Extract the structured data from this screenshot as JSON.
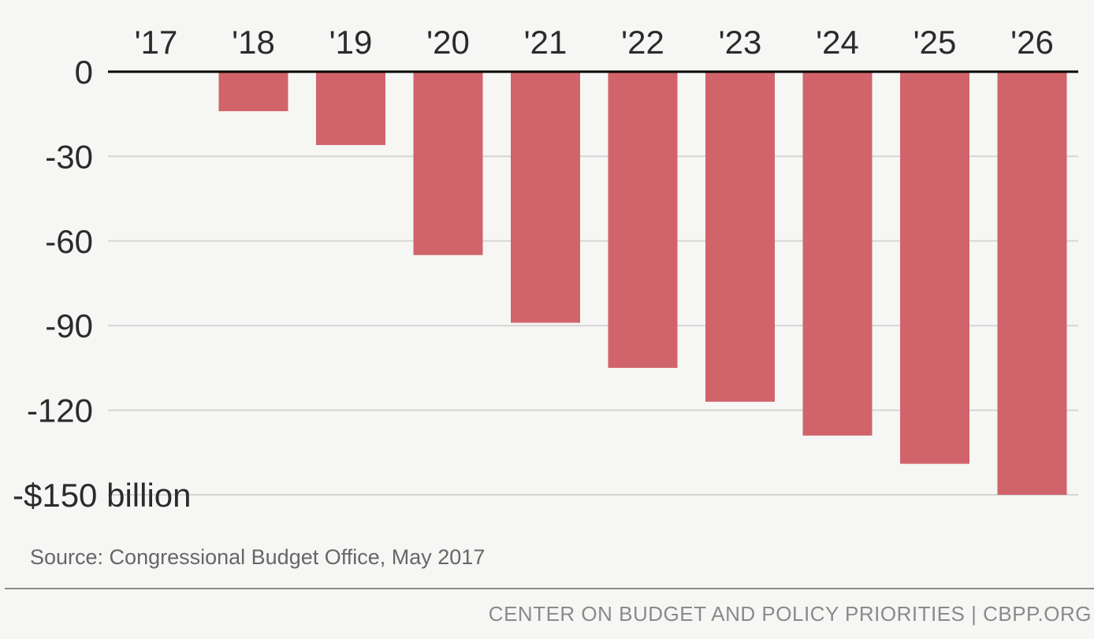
{
  "chart_data": {
    "type": "bar",
    "categories": [
      "'17",
      "'18",
      "'19",
      "'20",
      "'21",
      "'22",
      "'23",
      "'24",
      "'25",
      "'26"
    ],
    "values": [
      0,
      -14,
      -26,
      -65,
      -89,
      -105,
      -117,
      -129,
      -139,
      -150
    ],
    "y_ticks": [
      0,
      -30,
      -60,
      -90,
      -120,
      -150
    ],
    "y_tick_labels": [
      "0",
      "-30",
      "-60",
      "-90",
      "-120",
      "-$150 billion"
    ],
    "ylim": [
      -150,
      0
    ],
    "x_axis_position": "top",
    "grid": true,
    "title": "",
    "xlabel": "",
    "ylabel": ""
  },
  "source": "Source: Congressional Budget Office, May 2017",
  "footer": "CENTER ON BUDGET AND POLICY PRIORITIES | CBPP.ORG",
  "colors": {
    "bar": "#d0646a",
    "gridline": "#d5d5d5",
    "zero_line": "#000000",
    "background": "#f6f6f5",
    "text": "#2b2b2b"
  }
}
